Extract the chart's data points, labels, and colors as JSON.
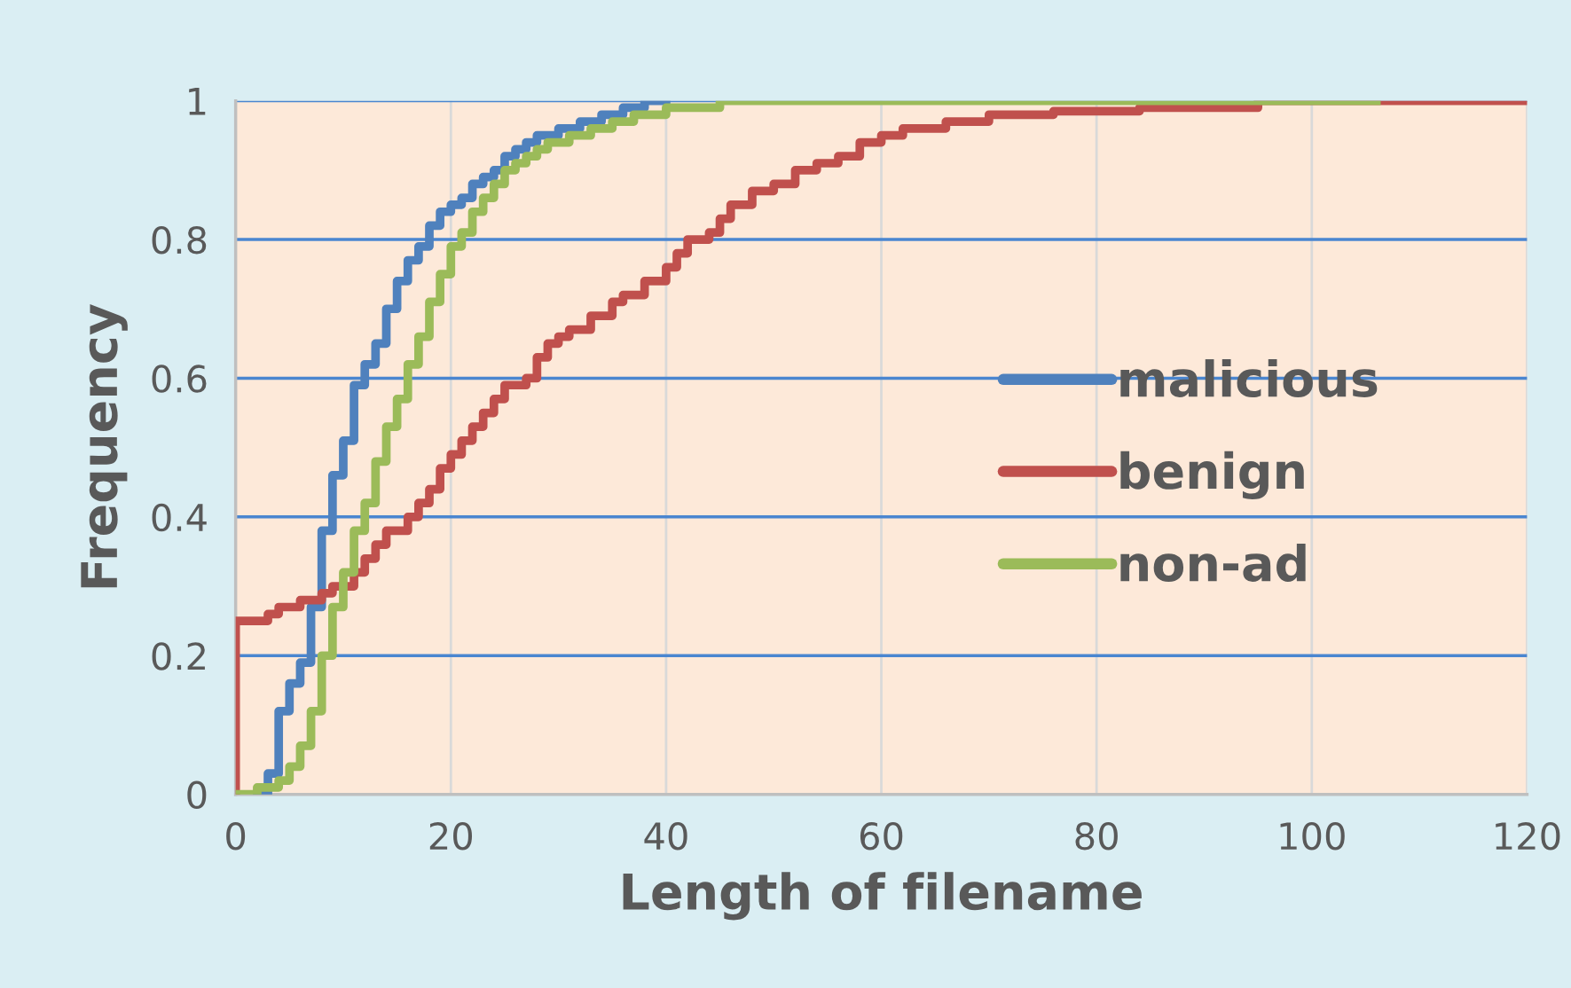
{
  "chart_data": {
    "type": "step",
    "xlabel": "Length of filename",
    "ylabel": "Frequency",
    "xlim": [
      0,
      120
    ],
    "ylim": [
      0,
      1
    ],
    "xticks": [
      0,
      20,
      40,
      60,
      80,
      100,
      120
    ],
    "yticks": [
      0,
      0.2,
      0.4,
      0.6,
      0.8,
      1
    ],
    "grid": true,
    "legend": "right",
    "line_style": "solid",
    "marker": "none",
    "series": [
      {
        "name": "malicious",
        "color": "#4f81bd",
        "x": [
          2,
          3,
          4,
          5,
          6,
          7,
          8,
          9,
          10,
          11,
          12,
          13,
          14,
          15,
          16,
          17,
          18,
          19,
          20,
          21,
          22,
          23,
          24,
          25,
          26,
          27,
          28,
          30,
          32,
          34,
          36,
          38,
          40
        ],
        "values": [
          0,
          0.03,
          0.12,
          0.16,
          0.19,
          0.27,
          0.38,
          0.46,
          0.51,
          0.59,
          0.62,
          0.65,
          0.7,
          0.74,
          0.77,
          0.79,
          0.82,
          0.84,
          0.85,
          0.86,
          0.88,
          0.89,
          0.9,
          0.92,
          0.93,
          0.94,
          0.95,
          0.96,
          0.97,
          0.98,
          0.99,
          1,
          1
        ]
      },
      {
        "name": "benign",
        "color": "#c0504d",
        "x": [
          0,
          0,
          3,
          4,
          6,
          8,
          9,
          11,
          12,
          13,
          14,
          16,
          17,
          18,
          19,
          20,
          21,
          22,
          23,
          24,
          25,
          27,
          28,
          29,
          30,
          31,
          33,
          35,
          36,
          38,
          40,
          41,
          42,
          44,
          45,
          46,
          48,
          50,
          52,
          54,
          56,
          58,
          60,
          62,
          66,
          70,
          76,
          84,
          95,
          120
        ],
        "values": [
          0,
          0.25,
          0.26,
          0.27,
          0.28,
          0.29,
          0.3,
          0.32,
          0.34,
          0.36,
          0.38,
          0.4,
          0.42,
          0.44,
          0.47,
          0.49,
          0.51,
          0.53,
          0.55,
          0.57,
          0.59,
          0.6,
          0.63,
          0.65,
          0.66,
          0.67,
          0.69,
          0.71,
          0.72,
          0.74,
          0.76,
          0.78,
          0.8,
          0.81,
          0.83,
          0.85,
          0.87,
          0.88,
          0.9,
          0.91,
          0.92,
          0.94,
          0.95,
          0.96,
          0.97,
          0.98,
          0.985,
          0.99,
          1,
          1
        ]
      },
      {
        "name": "non-ad",
        "color": "#9bbb59",
        "x": [
          0,
          2,
          4,
          5,
          6,
          7,
          8,
          9,
          10,
          11,
          12,
          13,
          14,
          15,
          16,
          17,
          18,
          19,
          20,
          21,
          22,
          23,
          24,
          25,
          26,
          27,
          28,
          29,
          31,
          33,
          35,
          37,
          40,
          45,
          106
        ],
        "values": [
          0,
          0.01,
          0.02,
          0.04,
          0.07,
          0.12,
          0.2,
          0.27,
          0.32,
          0.38,
          0.42,
          0.48,
          0.53,
          0.57,
          0.62,
          0.66,
          0.71,
          0.75,
          0.79,
          0.81,
          0.84,
          0.86,
          0.88,
          0.9,
          0.91,
          0.92,
          0.93,
          0.94,
          0.95,
          0.96,
          0.97,
          0.98,
          0.99,
          1,
          1
        ]
      }
    ]
  }
}
